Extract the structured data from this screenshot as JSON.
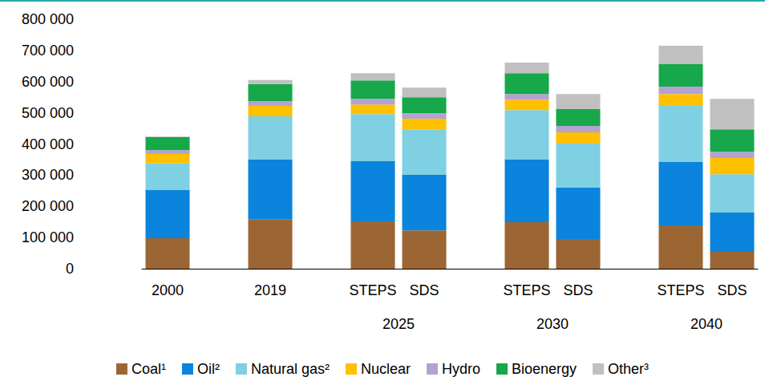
{
  "chart_data": {
    "type": "bar",
    "stacked": true,
    "grid": false,
    "legend": "bottom",
    "categories": [
      "2000",
      null,
      "2019",
      null,
      "STEPS",
      "SDS",
      null,
      "STEPS",
      "SDS",
      null,
      "STEPS",
      "SDS"
    ],
    "category_groups": [
      null,
      null,
      null,
      null,
      "2025",
      "2025",
      null,
      "2030",
      "2030",
      null,
      "2040",
      "2040"
    ],
    "ylim": [
      0,
      800000
    ],
    "yticks": [
      {
        "value": 0,
        "label": "0"
      },
      {
        "value": 100000,
        "label": "100 000"
      },
      {
        "value": 200000,
        "label": "200 000"
      },
      {
        "value": 300000,
        "label": "300 000"
      },
      {
        "value": 400000,
        "label": "400 000"
      },
      {
        "value": 500000,
        "label": "500 000"
      },
      {
        "value": 600000,
        "label": "600 000"
      },
      {
        "value": 700000,
        "label": "700 000"
      },
      {
        "value": 800000,
        "label": "800 000"
      }
    ],
    "series": [
      {
        "name": "Coal¹",
        "color": "#9b6633",
        "values": [
          98000,
          null,
          159000,
          null,
          152000,
          123000,
          null,
          149000,
          95000,
          null,
          139000,
          54000
        ]
      },
      {
        "name": "Oil²",
        "color": "#0a84dc",
        "values": [
          154000,
          null,
          191000,
          null,
          193000,
          178000,
          null,
          201000,
          165000,
          null,
          203000,
          126000
        ]
      },
      {
        "name": "Natural gas²",
        "color": "#7fd0e2",
        "values": [
          87000,
          null,
          139000,
          null,
          151000,
          146000,
          null,
          159000,
          141000,
          null,
          180000,
          123000
        ]
      },
      {
        "name": "Nuclear",
        "color": "#ffc000",
        "values": [
          29000,
          null,
          33000,
          null,
          31000,
          34000,
          null,
          33000,
          36000,
          null,
          38000,
          52000
        ]
      },
      {
        "name": "Hydro",
        "color": "#b4a2d2",
        "values": [
          12000,
          null,
          15000,
          null,
          18000,
          18000,
          null,
          18000,
          21000,
          null,
          24000,
          20000
        ]
      },
      {
        "name": "Bioenergy",
        "color": "#16a84a",
        "values": [
          42000,
          null,
          55000,
          null,
          59000,
          51000,
          null,
          67000,
          54000,
          null,
          72000,
          72000
        ]
      },
      {
        "name": "Other³",
        "color": "#c0c0c0",
        "values": [
          2000,
          null,
          13000,
          null,
          23000,
          31000,
          null,
          34000,
          48000,
          null,
          59000,
          98000
        ]
      }
    ]
  }
}
